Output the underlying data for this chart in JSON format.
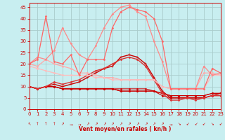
{
  "background_color": "#c8eef0",
  "grid_color": "#aacccc",
  "xlabel": "Vent moyen/en rafales ( kn/h )",
  "xlabel_color": "#cc0000",
  "tick_color": "#cc0000",
  "ylim": [
    0,
    47
  ],
  "xlim": [
    0,
    23
  ],
  "yticks": [
    0,
    5,
    10,
    15,
    20,
    25,
    30,
    35,
    40,
    45
  ],
  "xticks": [
    0,
    1,
    2,
    3,
    4,
    5,
    6,
    7,
    8,
    9,
    10,
    11,
    12,
    13,
    14,
    15,
    16,
    17,
    18,
    19,
    20,
    21,
    22,
    23
  ],
  "series": [
    {
      "comment": "dark red - low flat line",
      "x": [
        0,
        1,
        2,
        3,
        4,
        5,
        6,
        7,
        8,
        9,
        10,
        11,
        12,
        13,
        14,
        15,
        16,
        17,
        18,
        19,
        20,
        21,
        22,
        23
      ],
      "y": [
        10,
        9,
        10,
        10,
        9,
        9,
        9,
        9,
        9,
        9,
        9,
        9,
        9,
        9,
        9,
        8,
        7,
        6,
        6,
        6,
        6,
        6,
        7,
        7
      ],
      "color": "#cc0000",
      "lw": 0.8,
      "marker": "D",
      "ms": 1.5
    },
    {
      "comment": "dark red - low flat line 2",
      "x": [
        0,
        1,
        2,
        3,
        4,
        5,
        6,
        7,
        8,
        9,
        10,
        11,
        12,
        13,
        14,
        15,
        16,
        17,
        18,
        19,
        20,
        21,
        22,
        23
      ],
      "y": [
        10,
        9,
        10,
        10,
        9,
        9,
        9,
        9,
        9,
        9,
        9,
        8,
        8,
        8,
        8,
        8,
        7,
        6,
        6,
        6,
        6,
        6,
        7,
        7
      ],
      "color": "#cc0000",
      "lw": 0.8,
      "marker": "D",
      "ms": 1.5
    },
    {
      "comment": "dark red - low flat line 3",
      "x": [
        0,
        1,
        2,
        3,
        4,
        5,
        6,
        7,
        8,
        9,
        10,
        11,
        12,
        13,
        14,
        15,
        16,
        17,
        18,
        19,
        20,
        21,
        22,
        23
      ],
      "y": [
        10,
        9,
        10,
        10,
        9,
        9,
        9,
        9,
        9,
        9,
        9,
        8,
        8,
        8,
        8,
        8,
        6,
        5,
        5,
        5,
        5,
        5,
        6,
        6
      ],
      "color": "#cc0000",
      "lw": 0.8,
      "marker": "D",
      "ms": 1.5
    },
    {
      "comment": "dark red - medium arch",
      "x": [
        0,
        1,
        2,
        3,
        4,
        5,
        6,
        7,
        8,
        9,
        10,
        11,
        12,
        13,
        14,
        15,
        16,
        17,
        18,
        19,
        20,
        21,
        22,
        23
      ],
      "y": [
        10,
        9,
        10,
        11,
        10,
        11,
        12,
        14,
        16,
        18,
        19,
        23,
        24,
        23,
        20,
        14,
        8,
        5,
        5,
        5,
        5,
        5,
        6,
        7
      ],
      "color": "#cc0000",
      "lw": 1.0,
      "marker": "+",
      "ms": 3
    },
    {
      "comment": "medium red - medium arch 2",
      "x": [
        0,
        1,
        2,
        3,
        4,
        5,
        6,
        7,
        8,
        9,
        10,
        11,
        12,
        13,
        14,
        15,
        16,
        17,
        18,
        19,
        20,
        21,
        22,
        23
      ],
      "y": [
        10,
        9,
        10,
        12,
        11,
        12,
        13,
        15,
        17,
        18,
        20,
        22,
        23,
        22,
        19,
        13,
        7,
        4,
        4,
        5,
        4,
        5,
        6,
        6
      ],
      "color": "#dd3333",
      "lw": 1.0,
      "marker": "D",
      "ms": 1.5
    },
    {
      "comment": "light pink - flat high line",
      "x": [
        0,
        1,
        2,
        3,
        4,
        5,
        6,
        7,
        8,
        9,
        10,
        11,
        12,
        13,
        14,
        15,
        16,
        17,
        18,
        19,
        20,
        21,
        22,
        23
      ],
      "y": [
        20,
        19,
        22,
        20,
        19,
        18,
        16,
        16,
        15,
        14,
        14,
        13,
        13,
        13,
        13,
        13,
        10,
        9,
        9,
        9,
        9,
        16,
        16,
        15
      ],
      "color": "#ffaaaa",
      "lw": 0.9,
      "marker": "D",
      "ms": 1.5
    },
    {
      "comment": "light pink - flat high line 2",
      "x": [
        0,
        1,
        2,
        3,
        4,
        5,
        6,
        7,
        8,
        9,
        10,
        11,
        12,
        13,
        14,
        15,
        16,
        17,
        18,
        19,
        20,
        21,
        22,
        23
      ],
      "y": [
        19,
        18,
        17,
        16,
        15,
        15,
        15,
        15,
        14,
        14,
        13,
        13,
        13,
        13,
        13,
        13,
        10,
        9,
        9,
        9,
        9,
        9,
        15,
        15
      ],
      "color": "#ffbbbb",
      "lw": 0.9,
      "marker": "D",
      "ms": 1.5
    },
    {
      "comment": "salmon - tall arch peak ~45",
      "x": [
        0,
        1,
        2,
        3,
        4,
        5,
        6,
        7,
        8,
        9,
        10,
        11,
        12,
        13,
        14,
        15,
        16,
        17,
        18,
        19,
        20,
        21,
        22,
        23
      ],
      "y": [
        20,
        23,
        22,
        26,
        36,
        29,
        24,
        22,
        28,
        36,
        42,
        45,
        46,
        43,
        41,
        30,
        21,
        9,
        9,
        9,
        9,
        19,
        15,
        16
      ],
      "color": "#ff8888",
      "lw": 0.9,
      "marker": "D",
      "ms": 1.5
    },
    {
      "comment": "medium pink - tall arch peak ~41",
      "x": [
        0,
        1,
        2,
        3,
        4,
        5,
        6,
        7,
        8,
        9,
        10,
        11,
        12,
        13,
        14,
        15,
        16,
        17,
        18,
        19,
        20,
        21,
        22,
        23
      ],
      "y": [
        20,
        22,
        41,
        21,
        20,
        24,
        15,
        22,
        22,
        22,
        36,
        43,
        45,
        44,
        43,
        40,
        30,
        9,
        9,
        9,
        9,
        9,
        18,
        16
      ],
      "color": "#ff6666",
      "lw": 0.9,
      "marker": "D",
      "ms": 1.5
    }
  ],
  "wind_arrows": [
    "↖",
    "↑",
    "↑",
    "↑",
    "↗",
    "→",
    "→",
    "↗",
    "↗",
    "↗",
    "↗",
    "↗",
    "↗",
    "↗",
    "↗",
    "↗",
    "↗",
    "→",
    "↘",
    "↙",
    "↙",
    "↙",
    "↘",
    "↙"
  ],
  "wind_arrow_color": "#cc0000"
}
